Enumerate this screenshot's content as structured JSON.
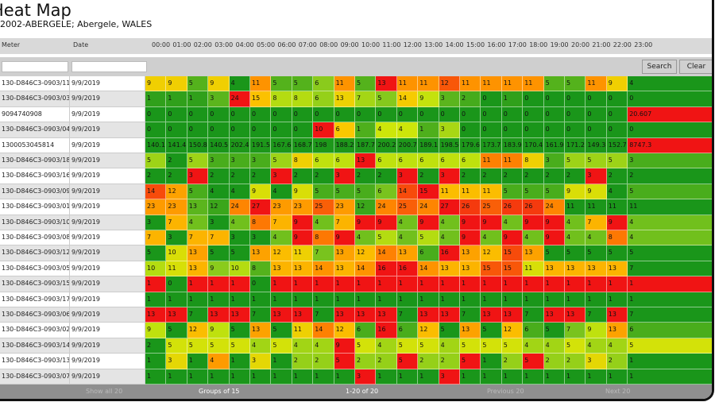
{
  "header": {
    "title": "Heat Map",
    "subtitle": "2002-ABERGELE; Abergele, WALES"
  },
  "columns": [
    "Meter",
    "Date",
    "00:00",
    "01:00",
    "02:00",
    "03:00",
    "04:00",
    "05:00",
    "06:00",
    "07:00",
    "08:00",
    "09:00",
    "10:00",
    "11:00",
    "12:00",
    "13:00",
    "14:00",
    "15:00",
    "16:00",
    "17:00",
    "18:00",
    "19:00",
    "20:00",
    "21:00",
    "22:00",
    "23:00"
  ],
  "buttons": {
    "search": "Search",
    "clear": "Clear"
  },
  "rows": [
    {
      "meter": "130-D846C3-0903/11",
      "date": "9/9/2019",
      "values": [
        9,
        9,
        5,
        9,
        4,
        11,
        5,
        5,
        6,
        11,
        5,
        13,
        11,
        11,
        12,
        11,
        11,
        11,
        11,
        5,
        5,
        11,
        9,
        4
      ]
    },
    {
      "meter": "130-D846C3-0903/03",
      "date": "9/9/2019",
      "values": [
        1,
        1,
        1,
        3,
        24,
        15,
        8,
        8,
        6,
        13,
        7,
        5,
        14,
        9,
        3,
        2,
        0,
        1,
        0,
        0,
        0,
        0,
        0,
        0
      ]
    },
    {
      "meter": "9094740908",
      "date": "9/9/2019",
      "values": [
        0,
        0,
        0,
        0,
        0,
        0,
        0,
        0,
        0,
        0,
        0,
        0,
        0,
        0,
        0,
        0,
        0,
        0,
        0,
        0,
        0,
        0,
        0,
        20.607
      ]
    },
    {
      "meter": "130-D846C3-0903/04",
      "date": "9/9/2019",
      "values": [
        0,
        0,
        0,
        0,
        0,
        0,
        0,
        0,
        10,
        6,
        1,
        4,
        4,
        1,
        3,
        0,
        0,
        0,
        0,
        0,
        0,
        0,
        0,
        0
      ]
    },
    {
      "meter": "1300053045814",
      "date": "9/9/2019",
      "values": [
        140.1,
        141.4,
        150.8,
        140.5,
        202.4,
        191.5,
        167.6,
        168.7,
        198,
        188.2,
        187.7,
        200.2,
        200.7,
        189.1,
        198.5,
        179.6,
        173.7,
        183.9,
        170.4,
        161.9,
        171.2,
        149.3,
        152.7,
        8747.3
      ]
    },
    {
      "meter": "130-D846C3-0903/18",
      "date": "9/9/2019",
      "values": [
        5,
        2,
        5,
        3,
        3,
        3,
        5,
        8,
        6,
        6,
        13,
        6,
        6,
        6,
        6,
        6,
        11,
        11,
        8,
        3,
        5,
        5,
        5,
        3
      ]
    },
    {
      "meter": "130-D846C3-0903/16",
      "date": "9/9/2019",
      "values": [
        2,
        2,
        3,
        2,
        2,
        2,
        3,
        2,
        2,
        3,
        2,
        2,
        3,
        2,
        3,
        2,
        2,
        2,
        2,
        2,
        2,
        3,
        2,
        2
      ]
    },
    {
      "meter": "130-D846C3-0903/09",
      "date": "9/9/2019",
      "values": [
        14,
        12,
        5,
        4,
        4,
        9,
        4,
        9,
        5,
        5,
        5,
        6,
        14,
        15,
        11,
        11,
        11,
        5,
        5,
        5,
        9,
        9,
        4,
        5
      ]
    },
    {
      "meter": "130-D846C3-0903/01",
      "date": "9/9/2019",
      "values": [
        23,
        23,
        13,
        12,
        24,
        27,
        23,
        23,
        25,
        23,
        12,
        24,
        25,
        24,
        27,
        26,
        25,
        26,
        26,
        24,
        11,
        11,
        11,
        11
      ]
    },
    {
      "meter": "130-D846C3-0903/10",
      "date": "9/9/2019",
      "values": [
        3,
        7,
        4,
        3,
        4,
        8,
        7,
        9,
        4,
        7,
        9,
        9,
        4,
        9,
        4,
        9,
        9,
        4,
        9,
        9,
        4,
        7,
        9,
        4
      ]
    },
    {
      "meter": "130-D846C3-0903/08",
      "date": "9/9/2019",
      "values": [
        7,
        3,
        7,
        7,
        3,
        3,
        4,
        9,
        8,
        9,
        4,
        5,
        4,
        5,
        4,
        9,
        4,
        9,
        4,
        9,
        4,
        4,
        8,
        4
      ]
    },
    {
      "meter": "130-D846C3-0903/12",
      "date": "9/9/2019",
      "values": [
        5,
        10,
        13,
        5,
        5,
        13,
        12,
        11,
        7,
        13,
        12,
        14,
        13,
        6,
        16,
        13,
        12,
        15,
        13,
        5,
        5,
        5,
        5,
        5
      ]
    },
    {
      "meter": "130-D846C3-0903/05",
      "date": "9/9/2019",
      "values": [
        10,
        11,
        13,
        9,
        10,
        8,
        13,
        13,
        14,
        13,
        14,
        16,
        16,
        14,
        13,
        13,
        15,
        15,
        11,
        13,
        13,
        13,
        13,
        7
      ]
    },
    {
      "meter": "130-D846C3-0903/15",
      "date": "9/9/2019",
      "values": [
        1,
        0,
        1,
        1,
        1,
        0,
        1,
        1,
        1,
        1,
        1,
        1,
        1,
        1,
        1,
        1,
        1,
        1,
        1,
        1,
        1,
        1,
        1,
        1
      ]
    },
    {
      "meter": "130-D846C3-0903/17",
      "date": "9/9/2019",
      "values": [
        1,
        1,
        1,
        1,
        1,
        1,
        1,
        1,
        1,
        1,
        1,
        1,
        1,
        1,
        1,
        1,
        1,
        1,
        1,
        1,
        1,
        1,
        1,
        1
      ]
    },
    {
      "meter": "130-D846C3-0903/06",
      "date": "9/9/2019",
      "values": [
        13,
        13,
        7,
        13,
        13,
        7,
        13,
        13,
        7,
        13,
        13,
        13,
        7,
        13,
        13,
        7,
        13,
        13,
        7,
        13,
        13,
        7,
        13,
        7
      ]
    },
    {
      "meter": "130-D846C3-0903/02",
      "date": "9/9/2019",
      "values": [
        9,
        5,
        12,
        9,
        5,
        13,
        5,
        11,
        14,
        12,
        6,
        16,
        6,
        12,
        5,
        13,
        5,
        12,
        6,
        5,
        7,
        9,
        13,
        6
      ]
    },
    {
      "meter": "130-D846C3-0903/14",
      "date": "9/9/2019",
      "values": [
        2,
        5,
        5,
        5,
        5,
        4,
        5,
        4,
        4,
        9,
        5,
        4,
        5,
        5,
        4,
        5,
        5,
        5,
        4,
        4,
        5,
        4,
        4,
        5
      ]
    },
    {
      "meter": "130-D846C3-0903/13",
      "date": "9/9/2019",
      "values": [
        1,
        3,
        1,
        4,
        1,
        3,
        1,
        2,
        2,
        5,
        2,
        2,
        5,
        2,
        2,
        5,
        1,
        2,
        5,
        2,
        2,
        3,
        2,
        1
      ]
    },
    {
      "meter": "130-D846C3-0903/07",
      "date": "9/9/2019",
      "values": [
        1,
        1,
        1,
        1,
        1,
        1,
        1,
        1,
        1,
        1,
        3,
        1,
        1,
        1,
        3,
        1,
        1,
        1,
        1,
        1,
        1,
        1,
        1,
        1
      ]
    }
  ],
  "footer": {
    "show_all": "Show all 20",
    "groups": "Groups of 15",
    "range": "1-20 of 20",
    "previous": "Previous 20",
    "next": "Next 20"
  }
}
